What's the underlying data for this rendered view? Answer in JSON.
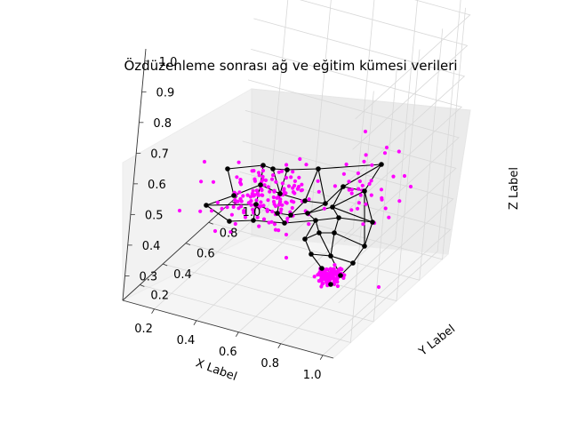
{
  "chart_data": {
    "type": "scatter",
    "title": "Özdüzenleme sonrası ağ ve eğitim kümesi verileri",
    "xlabel": "X Label",
    "ylabel": "Y Label",
    "zlabel": "Z Label",
    "x_ticks": [
      "0.2",
      "0.4",
      "0.6",
      "0.8",
      "1.0"
    ],
    "y_ticks": [
      "0.2",
      "0.4",
      "0.6",
      "0.8",
      "1.0"
    ],
    "z_ticks": [
      "0.3",
      "0.4",
      "0.5",
      "0.6",
      "0.7",
      "0.8",
      "0.9",
      "1.0"
    ],
    "xlim": [
      0.05,
      1.05
    ],
    "ylim": [
      0.05,
      1.05
    ],
    "zlim": [
      0.22,
      1.04
    ],
    "grid": true,
    "training_color": "#ff00ff",
    "network_color": "#000000"
  }
}
